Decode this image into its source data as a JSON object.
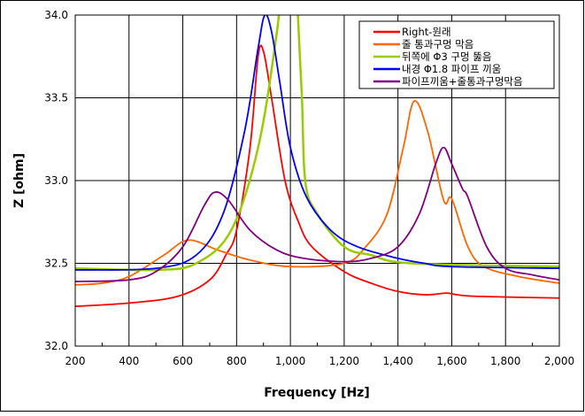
{
  "chart_data": {
    "type": "line",
    "title": "",
    "xlabel": "Frequency [Hz]",
    "ylabel": "Z [ohm]",
    "xlim": [
      200,
      2000
    ],
    "ylim": [
      32.0,
      34.0
    ],
    "xticks": [
      200,
      400,
      600,
      800,
      1000,
      1200,
      1400,
      1600,
      1800,
      2000
    ],
    "xtick_labels": [
      "200",
      "400",
      "600",
      "800",
      "1,000",
      "1,200",
      "1,400",
      "1,600",
      "1,800",
      "2,000"
    ],
    "yticks": [
      32.0,
      32.5,
      33.0,
      33.5,
      34.0
    ],
    "ytick_labels": [
      "32.0",
      "32.5",
      "33.0",
      "33.5",
      "34.0"
    ],
    "grid": true,
    "legend_position": "top-right",
    "series": [
      {
        "name": "Right-원래",
        "color": "#ff0000",
        "x": [
          200,
          400,
          580,
          700,
          760,
          800,
          850,
          880,
          900,
          930,
          980,
          1030,
          1080,
          1200,
          1300,
          1400,
          1500,
          1580,
          1620,
          1700,
          2000
        ],
        "y": [
          32.24,
          32.26,
          32.3,
          32.4,
          32.55,
          32.7,
          33.2,
          33.75,
          33.78,
          33.5,
          33.0,
          32.75,
          32.6,
          32.45,
          32.38,
          32.33,
          32.31,
          32.32,
          32.31,
          32.3,
          32.29
        ]
      },
      {
        "name": "줄 통과구멍 막음",
        "color": "#ff6600",
        "x": [
          200,
          300,
          400,
          530,
          620,
          730,
          850,
          1000,
          1200,
          1280,
          1360,
          1420,
          1460,
          1510,
          1570,
          1600,
          1660,
          1720,
          1850,
          2000
        ],
        "y": [
          32.37,
          32.38,
          32.42,
          32.55,
          32.64,
          32.58,
          32.52,
          32.48,
          32.5,
          32.6,
          32.8,
          33.2,
          33.48,
          33.3,
          32.88,
          32.89,
          32.6,
          32.48,
          32.42,
          32.38
        ]
      },
      {
        "name": "뒤쪽에 Φ3 구멍 뚫음",
        "color": "#99cc00",
        "x": [
          200,
          500,
          650,
          780,
          880,
          950,
          1000,
          1040,
          1055,
          1100,
          1200,
          1300,
          1450,
          2000
        ],
        "y": [
          32.47,
          32.46,
          32.5,
          32.7,
          33.2,
          33.9,
          34.6,
          33.6,
          33.0,
          32.8,
          32.6,
          32.55,
          32.5,
          32.48
        ]
      },
      {
        "name": "내경 Φ1.8 파이프 끼움",
        "color": "#0000ff",
        "x": [
          200,
          500,
          650,
          750,
          830,
          880,
          905,
          930,
          960,
          1000,
          1060,
          1150,
          1250,
          1400,
          1500,
          1600,
          2000
        ],
        "y": [
          32.46,
          32.47,
          32.55,
          32.8,
          33.3,
          33.8,
          34.0,
          33.9,
          33.6,
          33.2,
          32.9,
          32.7,
          32.6,
          32.53,
          32.5,
          32.48,
          32.47
        ]
      },
      {
        "name": "파이프끼움+줄통과구멍막음",
        "color": "#800080",
        "x": [
          200,
          400,
          500,
          600,
          680,
          720,
          770,
          850,
          950,
          1050,
          1200,
          1300,
          1400,
          1480,
          1540,
          1570,
          1600,
          1640,
          1660,
          1730,
          1800,
          1900,
          2000
        ],
        "y": [
          32.39,
          32.4,
          32.45,
          32.6,
          32.85,
          32.93,
          32.88,
          32.7,
          32.58,
          32.53,
          32.51,
          32.53,
          32.6,
          32.8,
          33.1,
          33.2,
          33.1,
          32.95,
          32.9,
          32.6,
          32.47,
          32.43,
          32.4
        ]
      }
    ]
  }
}
